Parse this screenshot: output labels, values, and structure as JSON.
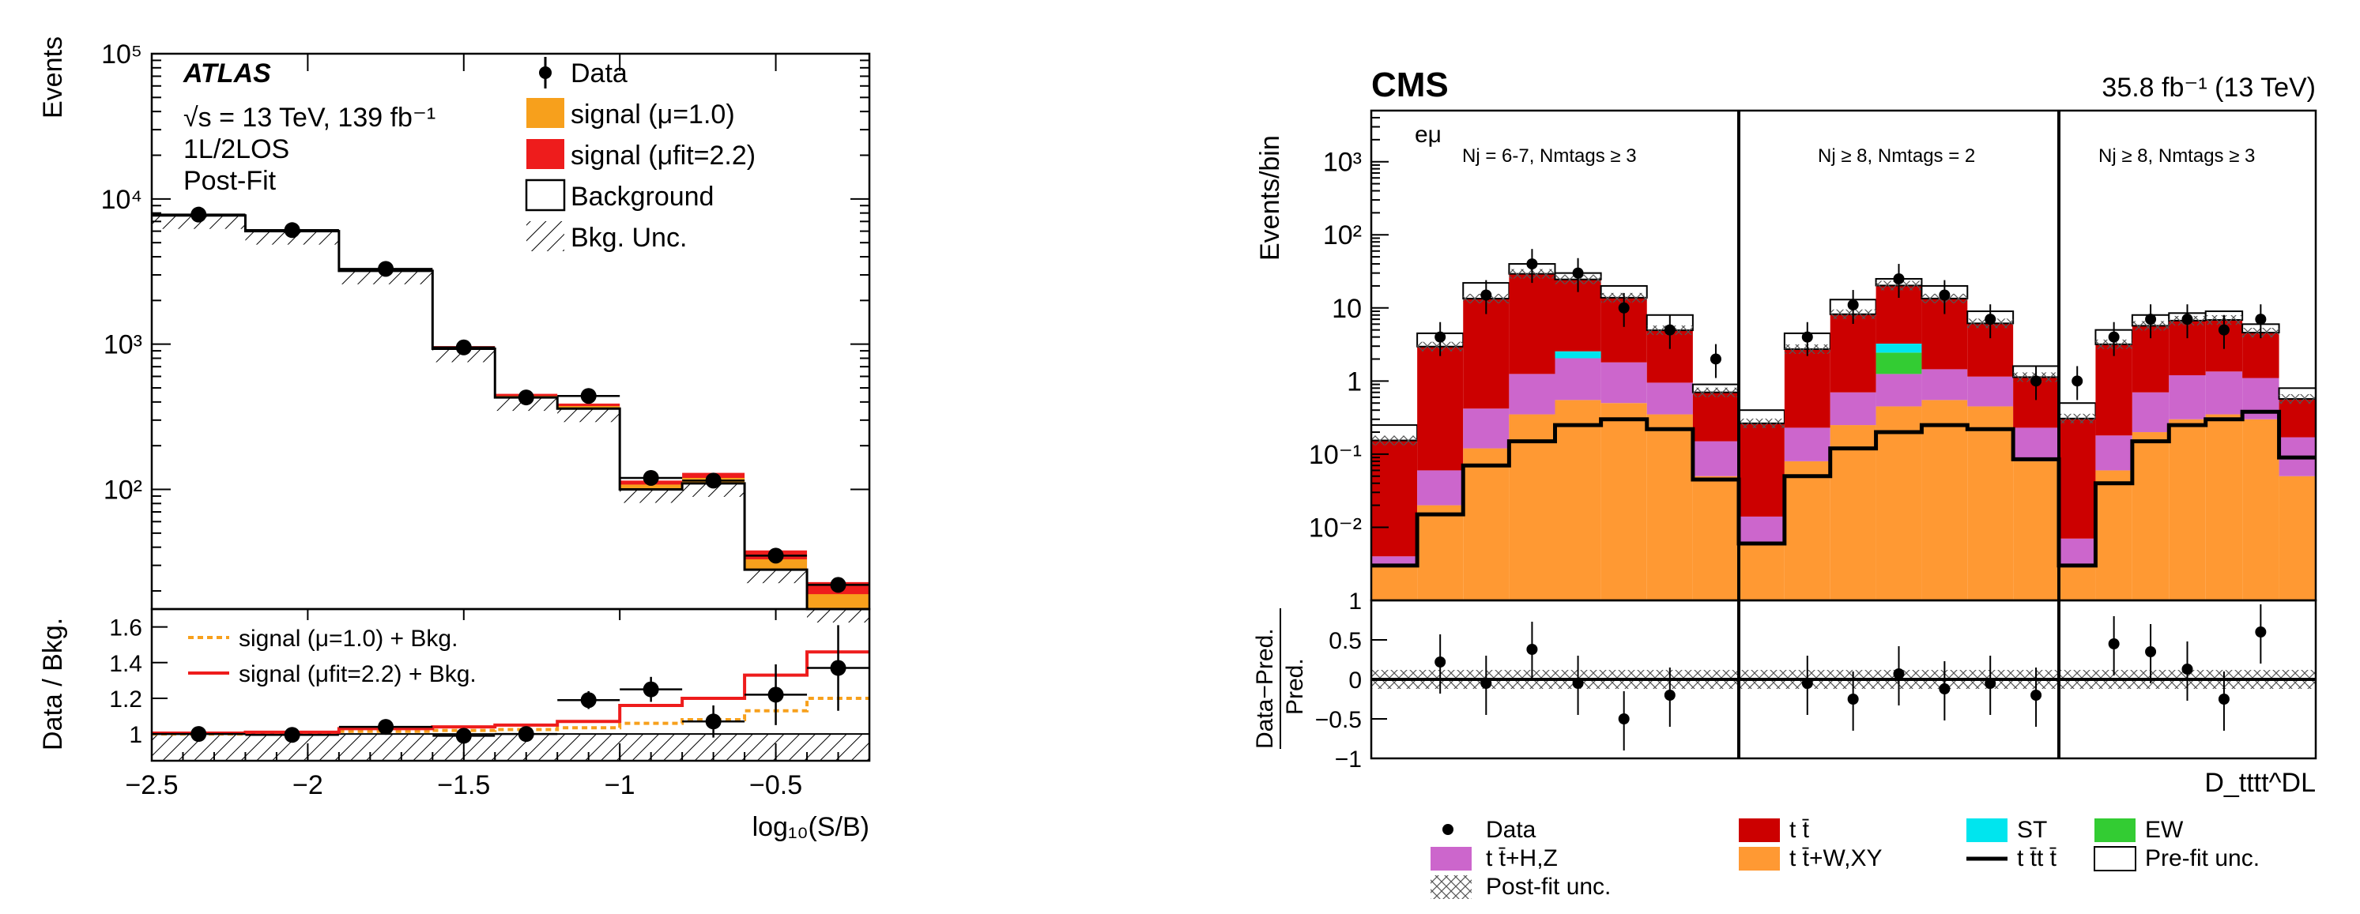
{
  "chart_data": [
    {
      "type": "bar",
      "panel": "atlas",
      "experiment": "ATLAS",
      "energy_line": "√s = 13 TeV, 139 fb⁻¹",
      "channel": "1L/2LOS",
      "fit_state": "Post-Fit",
      "ylabel": "Events",
      "xlabel": "log₁₀(S/B)",
      "ratio_ylabel": "Data / Bkg.",
      "ylim": [
        15,
        100000
      ],
      "yscale": "log",
      "xlim": [
        -2.5,
        -0.2
      ],
      "y_tick_labels": [
        "10²",
        "10³",
        "10⁴",
        "10⁵"
      ],
      "y_tick_values": [
        100,
        1000,
        10000,
        100000
      ],
      "x_tick_labels": [
        "−2.5",
        "−2",
        "−1.5",
        "−1",
        "−0.5"
      ],
      "x_tick_values": [
        -2.5,
        -2,
        -1.5,
        -1,
        -0.5
      ],
      "bin_edges": [
        -2.5,
        -2.2,
        -1.9,
        -1.6,
        -1.4,
        -1.2,
        -1.0,
        -0.8,
        -0.6,
        -0.4,
        -0.2
      ],
      "series": [
        {
          "name": "Background",
          "values": [
            7700,
            6000,
            3200,
            930,
            430,
            360,
            100,
            110,
            28,
            15
          ]
        },
        {
          "name": "signal (μ=1.0)",
          "values": [
            7760,
            6050,
            3250,
            950,
            440,
            375,
            108,
            120,
            33,
            19
          ]
        },
        {
          "name": "signal (μfit=2.2)",
          "values": [
            7820,
            6100,
            3300,
            970,
            455,
            390,
            115,
            130,
            38,
            23
          ]
        },
        {
          "name": "Data",
          "x": [
            -2.35,
            -2.05,
            -1.75,
            -1.5,
            -1.3,
            -1.1,
            -0.9,
            -0.7,
            -0.5,
            -0.3
          ],
          "values": [
            7800,
            6100,
            3300,
            950,
            430,
            440,
            120,
            115,
            35,
            22
          ]
        }
      ],
      "legend": [
        "Data",
        "signal (μ=1.0)",
        "signal (μfit=2.2)",
        "Background",
        "Bkg. Unc."
      ],
      "ratio": {
        "ylim": [
          0.85,
          1.7
        ],
        "y_tick_labels": [
          "1",
          "1.2",
          "1.4",
          "1.6"
        ],
        "y_tick_values": [
          1,
          1.2,
          1.4,
          1.6
        ],
        "legend": [
          "signal (μ=1.0) + Bkg.",
          "signal (μfit=2.2) + Bkg."
        ],
        "data": [
          1.0,
          0.995,
          1.04,
          0.99,
          1.0,
          1.19,
          1.25,
          1.07,
          1.22,
          1.37
        ],
        "data_err": [
          0.01,
          0.012,
          0.02,
          0.03,
          0.04,
          0.05,
          0.07,
          0.09,
          0.17,
          0.24
        ],
        "mu1": [
          1.0,
          1.005,
          1.015,
          1.02,
          1.025,
          1.035,
          1.06,
          1.08,
          1.13,
          1.2
        ],
        "mufit": [
          1.005,
          1.01,
          1.03,
          1.04,
          1.05,
          1.07,
          1.16,
          1.2,
          1.33,
          1.46
        ]
      },
      "colors": {
        "signal_mu1": "#f7a01c",
        "signal_mufit": "#ee1c1c"
      }
    },
    {
      "type": "bar",
      "panel": "cms",
      "experiment": "CMS",
      "lumi_label": "35.8 fb⁻¹ (13 TeV)",
      "channel": "eμ",
      "ylabel": "Events/bin",
      "ratio_ylabel_num": "Data−Pred.",
      "ratio_ylabel_den": "Pred.",
      "xlabel": "D_tttt^DL",
      "yscale": "log",
      "ylim": [
        0.001,
        5000
      ],
      "y_tick_labels": [
        "10⁻²",
        "10⁻¹",
        "1",
        "10",
        "10²",
        "10³"
      ],
      "y_tick_values": [
        0.01,
        0.1,
        1,
        10,
        100,
        1000
      ],
      "regions": [
        "Nj = 6-7, Nmtags ≥ 3",
        "Nj ≥ 8, Nmtags = 2",
        "Nj ≥ 8, Nmtags ≥ 3"
      ],
      "series": [
        {
          "name": "t t̄+W,XY",
          "values": [
            0.003,
            0.02,
            0.12,
            0.35,
            0.55,
            0.5,
            0.35,
            0.05,
            0.006,
            0.08,
            0.25,
            0.45,
            0.55,
            0.45,
            0.08,
            0.003,
            0.06,
            0.2,
            0.3,
            0.35,
            0.3,
            0.05
          ]
        },
        {
          "name": "t t̄+H,Z",
          "values": [
            0.001,
            0.04,
            0.3,
            0.9,
            1.5,
            1.3,
            0.6,
            0.1,
            0.008,
            0.15,
            0.45,
            0.8,
            0.9,
            0.7,
            0.15,
            0.004,
            0.12,
            0.5,
            0.9,
            1.0,
            0.8,
            0.12
          ]
        },
        {
          "name": "EW",
          "values": [
            0,
            0,
            0,
            0,
            0,
            0,
            0,
            0,
            0,
            0,
            0,
            1.2,
            0,
            0,
            0,
            0,
            0,
            0,
            0,
            0,
            0,
            0
          ]
        },
        {
          "name": "ST",
          "values": [
            0,
            0,
            0,
            0,
            0.5,
            0,
            0,
            0,
            0,
            0,
            0,
            0.8,
            0,
            0,
            0,
            0,
            0,
            0,
            0,
            0,
            0,
            0
          ]
        },
        {
          "name": "t t̄",
          "values": [
            0.15,
            2.9,
            13,
            28,
            22,
            12,
            4,
            0.55,
            0.25,
            2.5,
            7.5,
            17,
            12,
            5,
            0.9,
            0.3,
            3,
            5,
            5.5,
            5.5,
            3.5,
            0.4
          ]
        },
        {
          "name": "Pre-fit unc.",
          "values": [
            0.25,
            4.5,
            22,
            40,
            30,
            20,
            8,
            0.9,
            0.4,
            4.5,
            13,
            25,
            20,
            9,
            1.6,
            0.5,
            5,
            8,
            8.5,
            9,
            6,
            0.8
          ]
        },
        {
          "name": "t t̄t t̄",
          "values": [
            0.003,
            0.015,
            0.07,
            0.15,
            0.25,
            0.3,
            0.22,
            0.045,
            0.006,
            0.05,
            0.12,
            0.2,
            0.25,
            0.22,
            0.085,
            0.003,
            0.04,
            0.15,
            0.25,
            0.3,
            0.38,
            0.09
          ]
        },
        {
          "name": "Data",
          "values": [
            null,
            4,
            15,
            40,
            30,
            10,
            5,
            2,
            null,
            4,
            11,
            25,
            15,
            7,
            1,
            1,
            4,
            7,
            7,
            5,
            7,
            null
          ]
        }
      ],
      "legend": [
        "Data",
        "t t̄",
        "ST",
        "EW",
        "t t̄+H,Z",
        "t t̄+W,XY",
        "t t̄t t̄",
        "Pre-fit unc.",
        "Post-fit unc."
      ],
      "ratio": {
        "ylim": [
          -1,
          1
        ],
        "y_tick_labels": [
          "−1",
          "−0.5",
          "0",
          "0.5",
          "1"
        ],
        "y_tick_values": [
          -1,
          -0.5,
          0,
          0.5,
          1
        ],
        "data": [
          null,
          0.22,
          -0.05,
          0.38,
          -0.05,
          -0.5,
          -0.2,
          null,
          null,
          -0.05,
          -0.25,
          0.07,
          -0.12,
          -0.05,
          -0.2,
          null,
          0.45,
          0.35,
          0.13,
          -0.25,
          0.6,
          null
        ]
      },
      "colors": {
        "ttbar": "#cc0000",
        "ttHZ": "#cc66cc",
        "ttWXY": "#ff9933",
        "ST": "#00e5ee",
        "EW": "#33cc33"
      }
    }
  ]
}
